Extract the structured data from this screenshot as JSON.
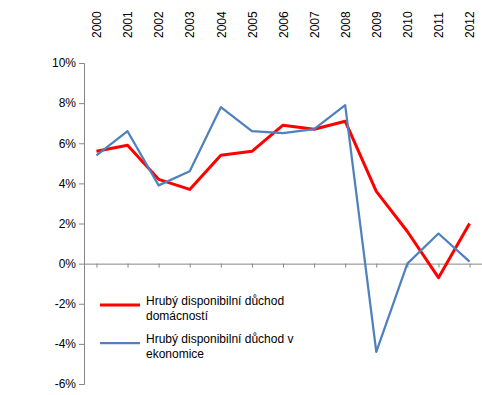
{
  "chart_data": {
    "type": "line",
    "categories": [
      "2000",
      "2001",
      "2002",
      "2003",
      "2004",
      "2005",
      "2006",
      "2007",
      "2008",
      "2009",
      "2010",
      "2011",
      "2012"
    ],
    "series": [
      {
        "name": "Hrubý disponibilní důchod domácností",
        "color": "#ff0000",
        "values": [
          5.6,
          5.9,
          4.2,
          3.7,
          5.4,
          5.6,
          6.9,
          6.7,
          7.1,
          3.6,
          1.6,
          -0.7,
          2.0
        ]
      },
      {
        "name": "Hrubý disponibilní důchod v ekonomice",
        "color": "#4f81bd",
        "values": [
          5.4,
          6.6,
          3.9,
          4.6,
          7.8,
          6.6,
          6.5,
          6.7,
          7.9,
          -4.4,
          0.0,
          1.5,
          0.1
        ]
      }
    ],
    "ylim": [
      -6,
      10
    ],
    "yticks": [
      {
        "value": -6,
        "label": "-6%"
      },
      {
        "value": -4,
        "label": "-4%"
      },
      {
        "value": -2,
        "label": "-2%"
      },
      {
        "value": 0,
        "label": "0%"
      },
      {
        "value": 2,
        "label": "2%"
      },
      {
        "value": 4,
        "label": "4%"
      },
      {
        "value": 6,
        "label": "6%"
      },
      {
        "value": 8,
        "label": "8%"
      },
      {
        "value": 10,
        "label": "10%"
      }
    ],
    "grid": false,
    "legend": "lower left"
  }
}
